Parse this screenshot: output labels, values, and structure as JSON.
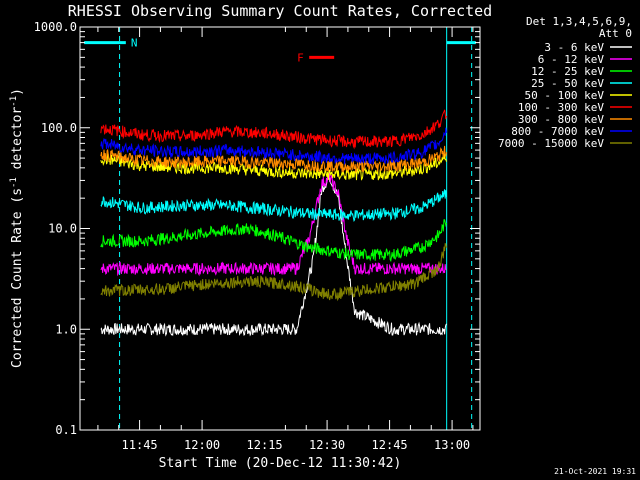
{
  "chart_data": {
    "type": "line",
    "title": "RHESSI Observing Summary Count Rates, Corrected",
    "xlabel": "Start Time (20-Dec-12 11:30:42)",
    "ylabel_main": "Corrected Count Rate (s",
    "ylabel_sup1": "-1",
    "ylabel_mid": " detector",
    "ylabel_sup2": "-1",
    "ylabel_end": ")",
    "y_scale": "log",
    "ylim": [
      0.1,
      1000
    ],
    "xlim_minutes_after_start": [
      0,
      96
    ],
    "y_ticks": [
      "0.1",
      "1.0",
      "10.0",
      "100.0",
      "1000.0"
    ],
    "x_ticks": [
      {
        "label": "11:45",
        "minute": 14.3
      },
      {
        "label": "12:00",
        "minute": 29.3
      },
      {
        "label": "12:15",
        "minute": 44.3
      },
      {
        "label": "12:30",
        "minute": 59.3
      },
      {
        "label": "12:45",
        "minute": 74.3
      },
      {
        "label": "13:00",
        "minute": 89.3
      }
    ],
    "legend_header_1": "Det 1,3,4,5,6,9,",
    "legend_header_2": "Att 0",
    "legend_placement": "right",
    "series": [
      {
        "name": "3 - 6 keV",
        "color": "#ffffff",
        "points": [
          [
            5,
            1
          ],
          [
            20,
            1
          ],
          [
            40,
            1
          ],
          [
            52,
            1
          ],
          [
            56,
            5
          ],
          [
            58,
            25
          ],
          [
            60,
            33
          ],
          [
            62,
            20
          ],
          [
            64,
            5
          ],
          [
            66,
            1.5
          ],
          [
            75,
            1
          ],
          [
            88,
            1
          ]
        ]
      },
      {
        "name": "6 - 12 keV",
        "color": "#ff00ff",
        "points": [
          [
            5,
            4
          ],
          [
            20,
            4
          ],
          [
            40,
            4
          ],
          [
            52,
            4
          ],
          [
            55,
            8
          ],
          [
            58,
            28
          ],
          [
            60,
            32
          ],
          [
            62,
            22
          ],
          [
            64,
            8
          ],
          [
            66,
            4
          ],
          [
            75,
            4
          ],
          [
            88,
            4
          ]
        ]
      },
      {
        "name": "12 - 25 keV",
        "color": "#00ff00",
        "points": [
          [
            5,
            7.5
          ],
          [
            15,
            7.5
          ],
          [
            30,
            9
          ],
          [
            40,
            10
          ],
          [
            45,
            9
          ],
          [
            55,
            6.5
          ],
          [
            65,
            5.5
          ],
          [
            75,
            5.5
          ],
          [
            82,
            6.5
          ],
          [
            86,
            8.5
          ],
          [
            88,
            12
          ]
        ]
      },
      {
        "name": "25 - 50 keV",
        "color": "#00ffff",
        "points": [
          [
            5,
            19
          ],
          [
            15,
            16
          ],
          [
            25,
            17
          ],
          [
            35,
            17
          ],
          [
            45,
            15.5
          ],
          [
            55,
            14
          ],
          [
            65,
            13.5
          ],
          [
            75,
            14
          ],
          [
            82,
            16
          ],
          [
            86,
            20
          ],
          [
            88,
            22
          ]
        ]
      },
      {
        "name": "50 - 100 keV",
        "color": "#ffff00",
        "points": [
          [
            5,
            50
          ],
          [
            15,
            42
          ],
          [
            25,
            40
          ],
          [
            35,
            40
          ],
          [
            45,
            37
          ],
          [
            55,
            35
          ],
          [
            65,
            34
          ],
          [
            75,
            35
          ],
          [
            82,
            39
          ],
          [
            86,
            45
          ],
          [
            88,
            52
          ]
        ]
      },
      {
        "name": "100 - 300 keV",
        "color": "#ff0000",
        "points": [
          [
            5,
            100
          ],
          [
            15,
            85
          ],
          [
            25,
            82
          ],
          [
            35,
            92
          ],
          [
            45,
            88
          ],
          [
            55,
            78
          ],
          [
            65,
            72
          ],
          [
            75,
            73
          ],
          [
            82,
            85
          ],
          [
            86,
            110
          ],
          [
            88,
            140
          ]
        ]
      },
      {
        "name": "300 - 800 keV",
        "color": "#ff8c00",
        "points": [
          [
            5,
            55
          ],
          [
            15,
            47
          ],
          [
            25,
            45
          ],
          [
            35,
            47
          ],
          [
            45,
            45
          ],
          [
            55,
            43
          ],
          [
            65,
            41
          ],
          [
            75,
            42
          ],
          [
            82,
            45
          ],
          [
            86,
            52
          ],
          [
            88,
            60
          ]
        ]
      },
      {
        "name": "800 - 7000 keV",
        "color": "#0000ff",
        "points": [
          [
            5,
            70
          ],
          [
            15,
            60
          ],
          [
            25,
            57
          ],
          [
            35,
            60
          ],
          [
            45,
            57
          ],
          [
            55,
            52
          ],
          [
            65,
            49
          ],
          [
            75,
            50
          ],
          [
            82,
            57
          ],
          [
            86,
            70
          ],
          [
            88,
            95
          ]
        ]
      },
      {
        "name": "7000 - 15000 keV",
        "color": "#808000",
        "points": [
          [
            5,
            2.4
          ],
          [
            20,
            2.5
          ],
          [
            30,
            2.8
          ],
          [
            40,
            3
          ],
          [
            50,
            2.8
          ],
          [
            60,
            2.2
          ],
          [
            70,
            2.5
          ],
          [
            80,
            2.8
          ],
          [
            86,
            4
          ],
          [
            88,
            7
          ]
        ]
      }
    ],
    "annotations": [
      {
        "label": "N",
        "color": "#00ffff",
        "bar_minutes": [
          1,
          11
        ],
        "bar_y": 700
      },
      {
        "label": "",
        "color": "#00ffff",
        "bar_minutes": [
          88,
          95
        ],
        "bar_y": 700
      },
      {
        "label": "F",
        "color": "#ff0000",
        "bar_minutes": [
          55,
          61
        ],
        "bar_y": 500
      }
    ],
    "vlines": [
      {
        "minute": 0,
        "style": "solid"
      },
      {
        "minute": 9.5,
        "style": "dashed"
      },
      {
        "minute": 88,
        "style": "solid"
      },
      {
        "minute": 94,
        "style": "dashed"
      }
    ]
  },
  "timestamp": "21-Oct-2021 19:31"
}
